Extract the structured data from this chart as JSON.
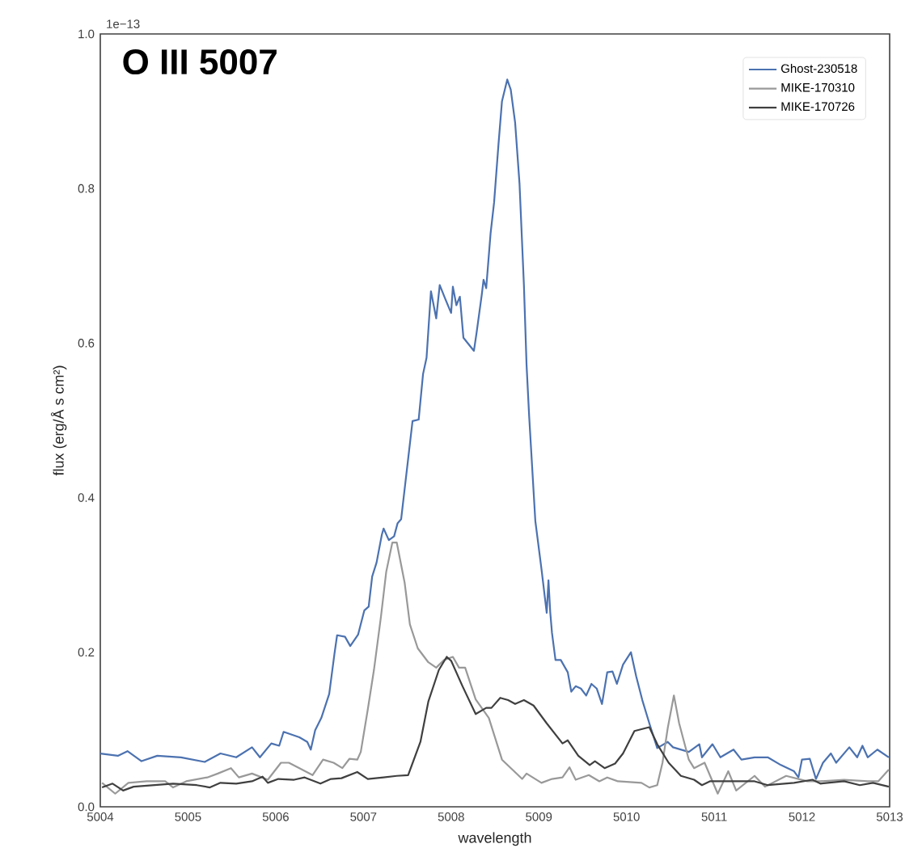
{
  "chart_data": {
    "type": "line",
    "title": "O III 5007",
    "xlabel": "wavelength",
    "ylabel": "flux (erg/Å s cm²)",
    "annotations": [
      "1e−13"
    ],
    "xlim": [
      5004,
      5013
    ],
    "xticks": [
      5004,
      5005,
      5006,
      5007,
      5008,
      5009,
      5010,
      5011,
      5012,
      5013
    ],
    "ylim": [
      0,
      1.0
    ],
    "yticks": [
      {
        "value": 0,
        "label": "0.0"
      },
      {
        "value": 0.2,
        "label": "0.2"
      },
      {
        "value": 0.4,
        "label": "0.4"
      },
      {
        "value": 0.6,
        "label": "0.6"
      },
      {
        "value": 0.8,
        "label": "0.8"
      },
      {
        "value": 1.0,
        "label": "1.0"
      }
    ],
    "legend": "top right",
    "series": [
      {
        "name": "Ghost-230518",
        "color": "#4c72b0",
        "x": [
          5004.0,
          5004.2,
          5004.31,
          5004.47,
          5004.65,
          5004.92,
          5005.19,
          5005.37,
          5005.55,
          5005.73,
          5005.82,
          5005.95,
          5006.04,
          5006.09,
          5006.27,
          5006.36,
          5006.4,
          5006.45,
          5006.52,
          5006.61,
          5006.67,
          5006.7,
          5006.79,
          5006.85,
          5006.94,
          5007.01,
          5007.06,
          5007.1,
          5007.15,
          5007.21,
          5007.23,
          5007.29,
          5007.35,
          5007.39,
          5007.43,
          5007.56,
          5007.63,
          5007.68,
          5007.72,
          5007.77,
          5007.83,
          5007.87,
          5007.93,
          5008.0,
          5008.02,
          5008.06,
          5008.1,
          5008.14,
          5008.26,
          5008.29,
          5008.35,
          5008.37,
          5008.4,
          5008.45,
          5008.49,
          5008.54,
          5008.58,
          5008.64,
          5008.68,
          5008.73,
          5008.78,
          5008.83,
          5008.86,
          5008.89,
          5008.96,
          5009.03,
          5009.09,
          5009.11,
          5009.13,
          5009.15,
          5009.19,
          5009.25,
          5009.33,
          5009.37,
          5009.42,
          5009.48,
          5009.54,
          5009.6,
          5009.66,
          5009.72,
          5009.78,
          5009.84,
          5009.89,
          5009.96,
          5010.05,
          5010.11,
          5010.18,
          5010.26,
          5010.35,
          5010.47,
          5010.53,
          5010.71,
          5010.83,
          5010.86,
          5010.98,
          5011.07,
          5011.22,
          5011.31,
          5011.46,
          5011.61,
          5011.76,
          5011.91,
          5011.96,
          5012.0,
          5012.09,
          5012.16,
          5012.24,
          5012.33,
          5012.39,
          5012.54,
          5012.63,
          5012.69,
          5012.75,
          5012.86,
          5012.99
        ],
        "values": [
          0.069,
          0.066,
          0.072,
          0.059,
          0.066,
          0.064,
          0.058,
          0.069,
          0.064,
          0.077,
          0.064,
          0.082,
          0.079,
          0.097,
          0.09,
          0.084,
          0.074,
          0.099,
          0.115,
          0.146,
          0.198,
          0.222,
          0.22,
          0.208,
          0.223,
          0.254,
          0.259,
          0.298,
          0.316,
          0.352,
          0.36,
          0.345,
          0.35,
          0.367,
          0.372,
          0.499,
          0.501,
          0.56,
          0.581,
          0.667,
          0.632,
          0.675,
          0.658,
          0.639,
          0.673,
          0.649,
          0.66,
          0.607,
          0.59,
          0.613,
          0.663,
          0.682,
          0.671,
          0.742,
          0.782,
          0.857,
          0.913,
          0.941,
          0.928,
          0.885,
          0.806,
          0.675,
          0.572,
          0.505,
          0.37,
          0.308,
          0.251,
          0.293,
          0.252,
          0.225,
          0.19,
          0.19,
          0.174,
          0.149,
          0.156,
          0.153,
          0.144,
          0.159,
          0.153,
          0.133,
          0.174,
          0.175,
          0.159,
          0.184,
          0.2,
          0.169,
          0.138,
          0.108,
          0.076,
          0.084,
          0.077,
          0.071,
          0.081,
          0.064,
          0.081,
          0.064,
          0.074,
          0.061,
          0.064,
          0.064,
          0.054,
          0.046,
          0.038,
          0.061,
          0.062,
          0.036,
          0.057,
          0.069,
          0.057,
          0.077,
          0.064,
          0.079,
          0.064,
          0.074,
          0.064
        ]
      },
      {
        "name": "MIKE-170310",
        "color": "#999999",
        "x": [
          5004.02,
          5004.17,
          5004.32,
          5004.53,
          5004.74,
          5004.83,
          5004.98,
          5005.22,
          5005.34,
          5005.49,
          5005.58,
          5005.73,
          5005.91,
          5006.06,
          5006.15,
          5006.27,
          5006.42,
          5006.54,
          5006.66,
          5006.76,
          5006.84,
          5006.93,
          5006.97,
          5007.05,
          5007.12,
          5007.2,
          5007.26,
          5007.33,
          5007.38,
          5007.47,
          5007.53,
          5007.62,
          5007.74,
          5007.83,
          5007.92,
          5008.02,
          5008.09,
          5008.16,
          5008.28,
          5008.43,
          5008.58,
          5008.81,
          5008.86,
          5009.03,
          5009.15,
          5009.27,
          5009.35,
          5009.42,
          5009.57,
          5009.69,
          5009.78,
          5009.9,
          5010.17,
          5010.26,
          5010.35,
          5010.41,
          5010.47,
          5010.54,
          5010.6,
          5010.71,
          5010.77,
          5010.89,
          5011.04,
          5011.16,
          5011.25,
          5011.46,
          5011.58,
          5011.82,
          5012.06,
          5012.21,
          5012.48,
          5012.75,
          5012.87,
          5012.99
        ],
        "values": [
          0.031,
          0.017,
          0.031,
          0.033,
          0.033,
          0.025,
          0.033,
          0.038,
          0.043,
          0.05,
          0.038,
          0.043,
          0.035,
          0.057,
          0.057,
          0.05,
          0.041,
          0.061,
          0.057,
          0.05,
          0.062,
          0.061,
          0.071,
          0.126,
          0.177,
          0.246,
          0.304,
          0.342,
          0.342,
          0.29,
          0.236,
          0.205,
          0.187,
          0.18,
          0.19,
          0.194,
          0.18,
          0.18,
          0.139,
          0.115,
          0.061,
          0.036,
          0.043,
          0.031,
          0.036,
          0.038,
          0.051,
          0.035,
          0.041,
          0.033,
          0.038,
          0.033,
          0.031,
          0.025,
          0.028,
          0.057,
          0.102,
          0.144,
          0.108,
          0.061,
          0.05,
          0.057,
          0.017,
          0.046,
          0.021,
          0.04,
          0.026,
          0.04,
          0.033,
          0.033,
          0.035,
          0.033,
          0.033,
          0.048
        ]
      },
      {
        "name": "MIKE-170726",
        "color": "#404040",
        "x": [
          5004.02,
          5004.14,
          5004.26,
          5004.38,
          5004.62,
          5004.83,
          5005.1,
          5005.25,
          5005.37,
          5005.55,
          5005.73,
          5005.85,
          5005.91,
          5006.03,
          5006.21,
          5006.33,
          5006.51,
          5006.63,
          5006.75,
          5006.93,
          5007.05,
          5007.23,
          5007.38,
          5007.51,
          5007.65,
          5007.74,
          5007.86,
          5007.95,
          5008.0,
          5008.13,
          5008.28,
          5008.4,
          5008.46,
          5008.56,
          5008.65,
          5008.73,
          5008.83,
          5008.94,
          5009.09,
          5009.27,
          5009.33,
          5009.45,
          5009.58,
          5009.64,
          5009.75,
          5009.87,
          5009.96,
          5010.09,
          5010.26,
          5010.35,
          5010.48,
          5010.62,
          5010.77,
          5010.86,
          5010.95,
          5011.16,
          5011.46,
          5011.61,
          5011.91,
          5012.12,
          5012.21,
          5012.48,
          5012.66,
          5012.81,
          5012.99
        ],
        "values": [
          0.025,
          0.03,
          0.021,
          0.026,
          0.028,
          0.03,
          0.028,
          0.025,
          0.031,
          0.03,
          0.033,
          0.039,
          0.031,
          0.036,
          0.035,
          0.038,
          0.03,
          0.036,
          0.037,
          0.045,
          0.036,
          0.038,
          0.04,
          0.041,
          0.084,
          0.136,
          0.177,
          0.194,
          0.189,
          0.156,
          0.12,
          0.128,
          0.128,
          0.141,
          0.138,
          0.133,
          0.138,
          0.131,
          0.108,
          0.082,
          0.086,
          0.066,
          0.054,
          0.059,
          0.05,
          0.056,
          0.069,
          0.098,
          0.103,
          0.081,
          0.057,
          0.04,
          0.035,
          0.028,
          0.033,
          0.033,
          0.033,
          0.028,
          0.031,
          0.035,
          0.03,
          0.033,
          0.028,
          0.031,
          0.026
        ]
      }
    ]
  }
}
